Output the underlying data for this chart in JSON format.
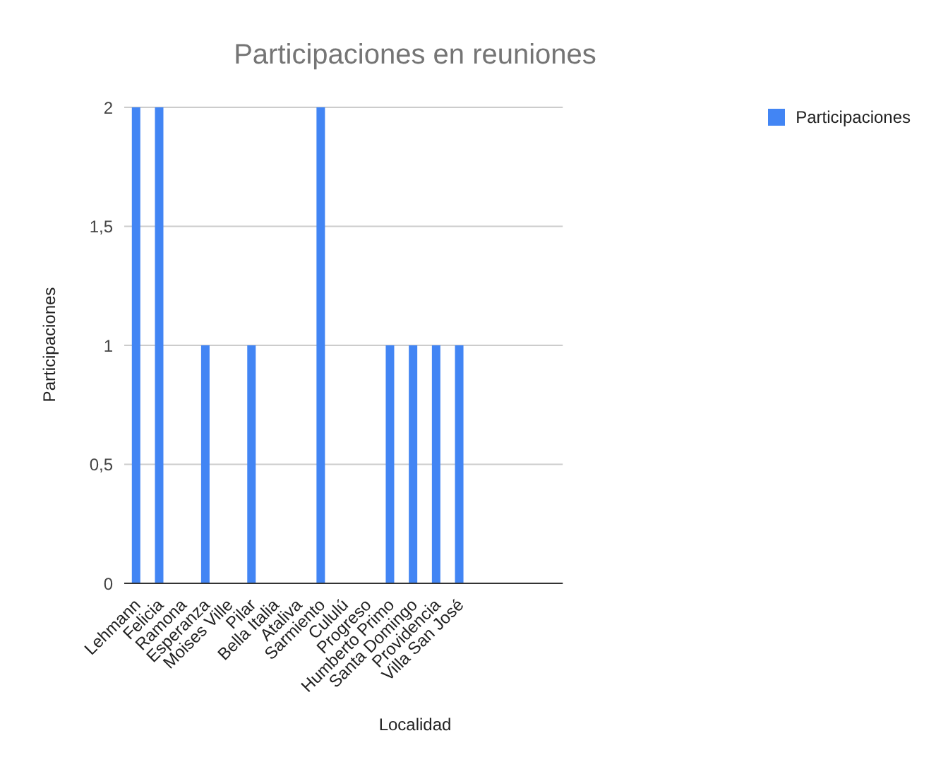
{
  "chart_data": {
    "type": "bar",
    "title": "Participaciones en reuniones",
    "xlabel": "Localidad",
    "ylabel": "Participaciones",
    "categories": [
      "Lehmann",
      "Felicia",
      "Ramona",
      "Esperanza",
      "Moises Ville",
      "Pilar",
      "Bella Italia",
      "Ataliva",
      "Sarmiento",
      "Cululú",
      "Progreso",
      "Humberto Primo",
      "Santa Domingo",
      "Providencia",
      "Villa San José",
      null,
      null,
      null,
      null
    ],
    "series": [
      {
        "name": "Participaciones",
        "color": "#4285f4",
        "values": [
          2,
          2,
          0,
          1,
          0,
          1,
          0,
          0,
          2,
          0,
          0,
          1,
          1,
          1,
          1,
          null,
          null,
          null,
          null
        ]
      }
    ],
    "ylim": [
      0,
      2
    ],
    "yticks": [
      0,
      {
        "value": 0.5,
        "label": "0,5"
      },
      1,
      {
        "value": 1.5,
        "label": "1,5"
      },
      2
    ],
    "grid": "y",
    "legend": "top right"
  }
}
